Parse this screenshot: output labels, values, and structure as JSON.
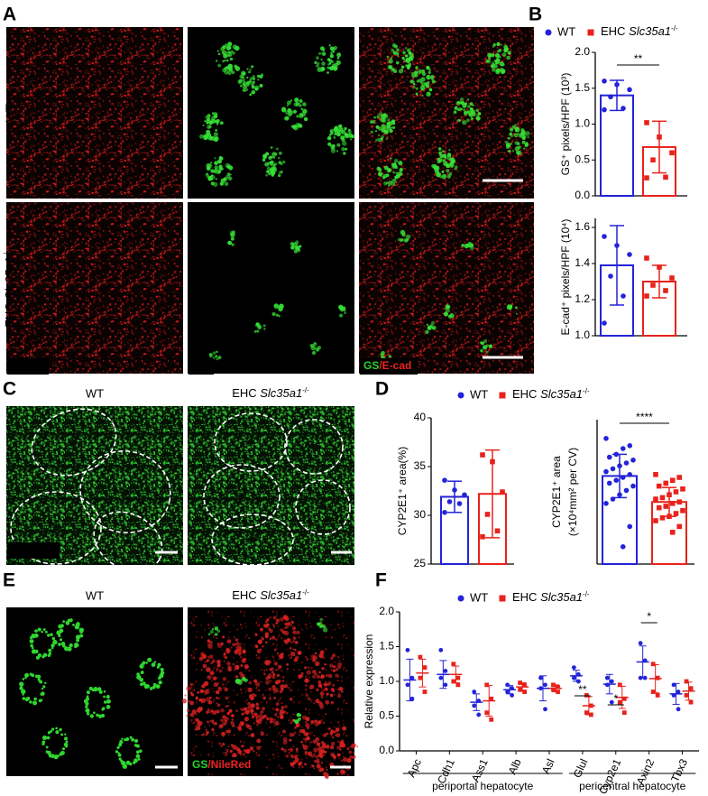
{
  "figure": {
    "letters": [
      "A",
      "B",
      "C",
      "D",
      "E",
      "F"
    ],
    "A": {
      "rows": [
        "WT",
        "EHC Slc35a1-/-"
      ],
      "channels": [
        "E-cad",
        "GS",
        "GS/E-cad"
      ]
    },
    "C": {
      "columns": [
        "WT",
        "EHC Slc35a1-/-"
      ],
      "channel": "CYP2E1"
    },
    "E": {
      "columns": [
        "WT",
        "EHC Slc35a1-/-"
      ],
      "channels": [
        "GS",
        "GS/NileRed"
      ]
    }
  },
  "chart_data": [
    {
      "type": "bar",
      "ylabel": "GS⁺ pixels/HPF (10³)",
      "ylim": [
        0,
        2.0
      ],
      "yticks": [
        {
          "value": 0,
          "label": "0.0"
        },
        0.5,
        {
          "value": 1.0,
          "label": "1.0"
        },
        1.5,
        {
          "value": 2.0,
          "label": "2.0"
        }
      ],
      "series": [
        {
          "name": "WT",
          "color": "#2323d9",
          "marker": "circle",
          "mean": 1.4,
          "error": 0.21,
          "values": [
            1.6,
            1.55,
            1.48,
            1.38,
            1.22,
            1.2
          ]
        },
        {
          "name": "EHC Slc35a1-/-",
          "color": "#e8221b",
          "marker": "square",
          "mean": 0.68,
          "error": 0.36,
          "values": [
            1.02,
            0.82,
            0.6,
            0.5,
            0.26,
            0.25
          ]
        }
      ],
      "significance": "**"
    },
    {
      "type": "bar",
      "ylabel": "E-cad⁺ pixels/HPF (10⁴)",
      "ylim": [
        1.0,
        1.65
      ],
      "yticks": [
        {
          "value": 1.0,
          "label": "1.0"
        },
        1.2,
        1.4,
        1.6
      ],
      "series": [
        {
          "color": "#2323d9",
          "marker": "circle",
          "mean": 1.39,
          "error": 0.22,
          "values": [
            1.55,
            1.5,
            1.45,
            1.33,
            1.22,
            1.07
          ]
        },
        {
          "color": "#e8221b",
          "marker": "square",
          "mean": 1.3,
          "error": 0.09,
          "values": [
            1.43,
            1.38,
            1.32,
            1.28,
            1.25,
            1.22
          ]
        }
      ]
    },
    {
      "type": "bar",
      "ylabel": "CYP2E1⁺ area(%)",
      "ylim": [
        25,
        40
      ],
      "yticks": [
        25,
        30,
        35,
        40
      ],
      "series": [
        {
          "name": "WT",
          "color": "#2323d9",
          "marker": "circle",
          "mean": 31.9,
          "error": 1.6,
          "values": [
            33.6,
            32.6,
            32.1,
            31.4,
            31.2,
            30.3
          ]
        },
        {
          "name": "EHC Slc35a1-/-",
          "color": "#e8221b",
          "marker": "square",
          "mean": 32.2,
          "error": 4.5,
          "values": [
            36.2,
            35.5,
            32.4,
            30.1,
            28.4,
            27.8
          ]
        }
      ]
    },
    {
      "type": "bar",
      "ylabel": [
        "CYP2E1⁺ area",
        "(×10⁴mm² per CV)"
      ],
      "ylim": [
        0,
        10
      ],
      "series": [
        {
          "color": "#2323d9",
          "marker": "circle",
          "mean": 6.1,
          "error": 1.5,
          "values": [
            8.7,
            8.2,
            8.0,
            7.6,
            7.4,
            7.2,
            7.0,
            6.8,
            6.6,
            6.4,
            6.2,
            6.0,
            5.8,
            5.6,
            5.4,
            5.1,
            4.8,
            4.5,
            4.2,
            2.6,
            1.2
          ]
        },
        {
          "color": "#e8221b",
          "marker": "square",
          "mean": 4.3,
          "error": 1.0,
          "values": [
            6.2,
            6.0,
            5.8,
            5.6,
            5.4,
            5.2,
            5.0,
            4.8,
            4.6,
            4.5,
            4.3,
            4.2,
            4.0,
            3.9,
            3.7,
            3.5,
            3.3,
            3.2,
            3.0,
            2.6,
            2.2
          ]
        }
      ],
      "significance": "****"
    },
    {
      "type": "dot",
      "ylabel": "Relative expression",
      "ylim": [
        0,
        2.0
      ],
      "yticks": [
        {
          "value": 0,
          "label": "0.0"
        },
        0.5,
        {
          "value": 1.0,
          "label": "1.0"
        },
        1.5,
        {
          "value": 2.0,
          "label": "2.0"
        }
      ],
      "categories": [
        "Apc",
        "Cdh1",
        "Ass1",
        "Alb",
        "Asl",
        "Glul",
        "Cyp2e1",
        "Axin2",
        "Tbx3"
      ],
      "series": [
        {
          "name": "WT",
          "color": "#2323d9",
          "marker": "circle",
          "values": [
            [
              1.45,
              1.05,
              0.95,
              0.75
            ],
            [
              1.45,
              1.15,
              1.05,
              0.95
            ],
            [
              0.85,
              0.72,
              0.65,
              0.52
            ],
            [
              0.95,
              0.9,
              0.85,
              0.8
            ],
            [
              1.05,
              0.95,
              0.9,
              0.6
            ],
            [
              1.2,
              1.1,
              1.05,
              1.0
            ],
            [
              1.05,
              1.0,
              0.95,
              0.7
            ],
            [
              1.55,
              1.3,
              1.05,
              1.05
            ],
            [
              0.95,
              0.85,
              0.8,
              0.6
            ]
          ],
          "means": [
            1.02,
            1.1,
            0.7,
            0.88,
            0.9,
            1.08,
            0.96,
            1.28,
            0.82
          ],
          "errors": [
            0.3,
            0.2,
            0.12,
            0.06,
            0.18,
            0.08,
            0.14,
            0.23,
            0.15
          ]
        },
        {
          "name": "EHC Slc35a1-/-",
          "color": "#e8221b",
          "marker": "square",
          "values": [
            [
              1.35,
              1.2,
              1.05,
              0.85
            ],
            [
              1.25,
              1.05,
              1.0,
              0.95
            ],
            [
              0.95,
              0.75,
              0.55,
              0.45
            ],
            [
              0.98,
              0.95,
              0.88,
              0.85
            ],
            [
              0.95,
              0.92,
              0.88,
              0.85
            ],
            [
              0.8,
              0.65,
              0.55,
              0.52
            ],
            [
              0.95,
              0.75,
              0.7,
              0.55
            ],
            [
              1.25,
              1.05,
              0.85,
              0.8
            ],
            [
              1.0,
              0.9,
              0.8,
              0.7
            ]
          ],
          "means": [
            1.12,
            1.1,
            0.72,
            0.92,
            0.9,
            0.65,
            0.77,
            1.04,
            0.86
          ],
          "errors": [
            0.2,
            0.12,
            0.22,
            0.06,
            0.05,
            0.13,
            0.16,
            0.2,
            0.13
          ]
        }
      ],
      "groups": [
        "periportal hepatocyte",
        "pericentral hepatocyte"
      ],
      "significance": [
        {
          "category": "Glul",
          "label": "**"
        },
        {
          "category": "Cyp2e1",
          "label": "*"
        },
        {
          "category": "Axin2",
          "label": "*"
        }
      ]
    }
  ]
}
